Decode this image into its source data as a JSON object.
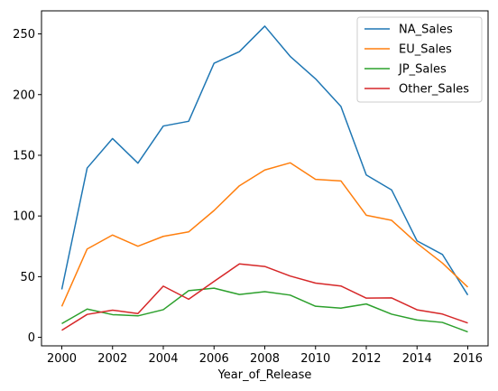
{
  "chart_data": {
    "type": "line",
    "title": "",
    "xlabel": "Year_of_Release",
    "ylabel": "",
    "x": [
      2000,
      2001,
      2002,
      2003,
      2004,
      2005,
      2006,
      2007,
      2008,
      2009,
      2010,
      2011,
      2012,
      2013,
      2014,
      2015,
      2016
    ],
    "xlim": [
      1999.2,
      2016.8
    ],
    "ylim": [
      -7,
      269
    ],
    "xticks": [
      2000,
      2002,
      2004,
      2006,
      2008,
      2010,
      2012,
      2014,
      2016
    ],
    "yticks": [
      0,
      50,
      100,
      150,
      200,
      250
    ],
    "grid": false,
    "legend_position": "top-right",
    "series": [
      {
        "name": "NA_Sales",
        "color": "#1f77b4",
        "values": [
          39.5,
          139.5,
          163.8,
          143.5,
          174.1,
          178.0,
          225.8,
          235.4,
          256.4,
          231.5,
          213.0,
          190.2,
          133.8,
          121.4,
          79.5,
          68.3,
          34.9
        ]
      },
      {
        "name": "EU_Sales",
        "color": "#ff7f0e",
        "values": [
          25.5,
          72.8,
          84.3,
          75.1,
          83.2,
          86.9,
          104.5,
          124.9,
          137.9,
          143.8,
          130.2,
          128.9,
          100.6,
          96.4,
          77.5,
          61.2,
          41.4
        ]
      },
      {
        "name": "JP_Sales",
        "color": "#2ca02c",
        "values": [
          11.3,
          23.3,
          18.7,
          17.7,
          22.8,
          38.5,
          40.5,
          35.3,
          37.6,
          34.8,
          25.6,
          24.1,
          27.5,
          19.1,
          14.3,
          12.3,
          4.5
        ]
      },
      {
        "name": "Other_Sales",
        "color": "#d62728",
        "values": [
          5.8,
          18.9,
          22.4,
          19.6,
          42.2,
          31.4,
          46.1,
          60.5,
          58.4,
          50.5,
          44.7,
          42.3,
          32.3,
          32.5,
          22.7,
          19.2,
          11.8
        ]
      }
    ]
  }
}
